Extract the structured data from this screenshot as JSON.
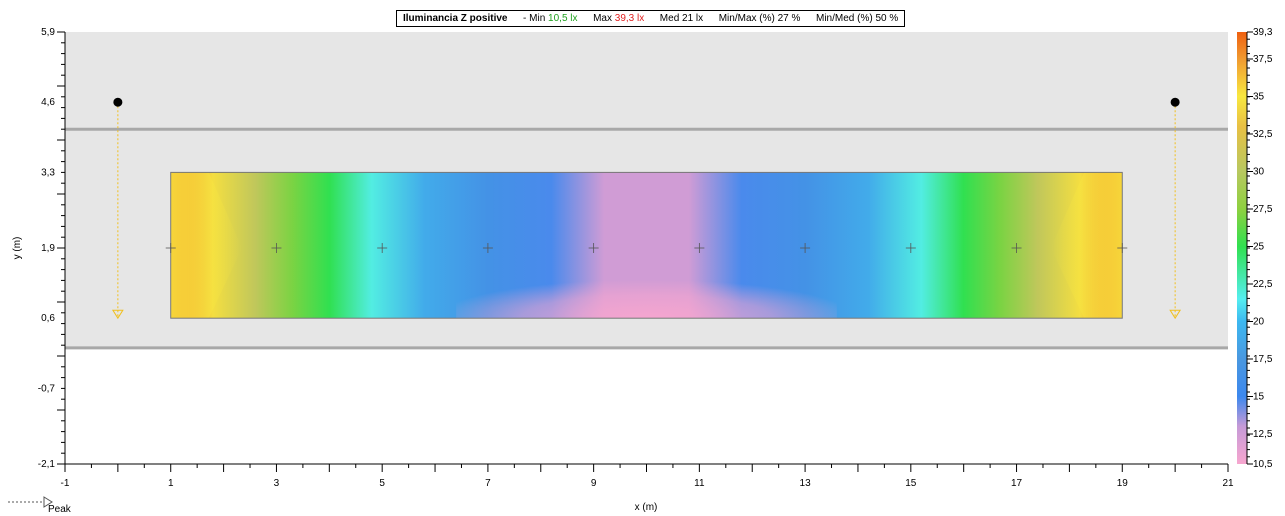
{
  "header": {
    "title": "Iluminancia Z positive",
    "min_label": "- Min",
    "min_value": "10,5 lx",
    "max_label": "Max",
    "max_value": "39,3 lx",
    "med_label": "Med",
    "med_value": "21 lx",
    "min_max_label": "Min/Max (%)",
    "min_max_value": "27 %",
    "min_med_label": "Min/Med (%)",
    "min_med_value": "50 %",
    "min_color": "#1fa01f",
    "max_color": "#e02020"
  },
  "legend": {
    "peak_label": "Peak"
  },
  "chart_data": {
    "type": "heatmap",
    "title": "Iluminancia Z positive",
    "xlabel": "x (m)",
    "ylabel": "y (m)",
    "xlim": [
      -1,
      21
    ],
    "ylim": [
      -2.1,
      5.9
    ],
    "x_tick_labels": [
      "-1",
      "1",
      "3",
      "5",
      "7",
      "9",
      "11",
      "13",
      "15",
      "17",
      "19",
      "21"
    ],
    "y_tick_labels": [
      {
        "value": 5.9,
        "label": "5,9"
      },
      {
        "value": 4.6,
        "label": "4,6"
      },
      {
        "value": 3.3,
        "label": "3,3"
      },
      {
        "value": 1.9,
        "label": "1,9"
      },
      {
        "value": 0.6,
        "label": "0,6"
      },
      {
        "value": -0.7,
        "label": "-0,7"
      },
      {
        "value": -2.1,
        "label": "-2,1"
      }
    ],
    "colorbar": {
      "min": 10.5,
      "max": 39.3,
      "tick_labels": [
        {
          "value": 39.3,
          "label": "39,3"
        },
        {
          "value": 37.5,
          "label": "37,5"
        },
        {
          "value": 35,
          "label": "35"
        },
        {
          "value": 32.5,
          "label": "32,5"
        },
        {
          "value": 30,
          "label": "30"
        },
        {
          "value": 27.5,
          "label": "27,5"
        },
        {
          "value": 25,
          "label": "25"
        },
        {
          "value": 22.5,
          "label": "22,5"
        },
        {
          "value": 20,
          "label": "20"
        },
        {
          "value": 17.5,
          "label": "17,5"
        },
        {
          "value": 15,
          "label": "15"
        },
        {
          "value": 12.5,
          "label": "12,5"
        },
        {
          "value": 10.5,
          "label": "10,5"
        }
      ],
      "stops": [
        {
          "value": 10.5,
          "color": "#f7a6cf"
        },
        {
          "value": 13,
          "color": "#c69ad7"
        },
        {
          "value": 15,
          "color": "#3c88ee"
        },
        {
          "value": 17.5,
          "color": "#4a98e0"
        },
        {
          "value": 20,
          "color": "#3cb8f0"
        },
        {
          "value": 21.5,
          "color": "#55eef0"
        },
        {
          "value": 25,
          "color": "#30e050"
        },
        {
          "value": 27.5,
          "color": "#8ed040"
        },
        {
          "value": 30,
          "color": "#b8c860"
        },
        {
          "value": 33,
          "color": "#e8c044"
        },
        {
          "value": 35,
          "color": "#f8e840"
        },
        {
          "value": 37.5,
          "color": "#f09a30"
        },
        {
          "value": 39.3,
          "color": "#ef6010"
        }
      ]
    },
    "road_band": {
      "x": [
        -1,
        21
      ],
      "y": [
        0.05,
        4.1
      ]
    },
    "calc_grid": {
      "x": [
        1,
        19
      ],
      "y": [
        0.6,
        3.3
      ]
    },
    "calc_points": [
      {
        "x": 1,
        "y": 1.9
      },
      {
        "x": 3,
        "y": 1.9
      },
      {
        "x": 5,
        "y": 1.9
      },
      {
        "x": 7,
        "y": 1.9
      },
      {
        "x": 9,
        "y": 1.9
      },
      {
        "x": 11,
        "y": 1.9
      },
      {
        "x": 13,
        "y": 1.9
      },
      {
        "x": 15,
        "y": 1.9
      },
      {
        "x": 17,
        "y": 1.9
      },
      {
        "x": 19,
        "y": 1.9
      }
    ],
    "luminaires": [
      {
        "x": 0,
        "y": 4.6,
        "aim_y": 0.6
      },
      {
        "x": 20,
        "y": 4.6,
        "aim_y": 0.6
      }
    ],
    "illuminance_profile": {
      "x": [
        1,
        1.8,
        2.6,
        3.3,
        4.0,
        4.8,
        5.8,
        7,
        8.2,
        9.2,
        10.8,
        11.8,
        13,
        14.2,
        15.2,
        16.0,
        16.7,
        17.4,
        18.2,
        19
      ],
      "values": [
        38.8,
        34.5,
        30.5,
        27.0,
        25.0,
        21.8,
        19.0,
        16.5,
        14.8,
        12.5,
        12.5,
        14.8,
        16.5,
        19.0,
        21.8,
        25.0,
        27.0,
        30.5,
        34.5,
        38.8
      ]
    }
  }
}
